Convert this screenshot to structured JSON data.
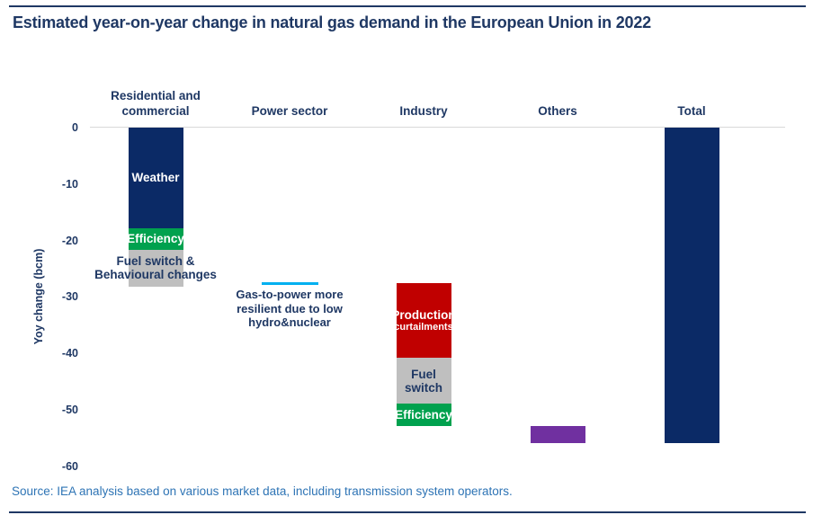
{
  "page": {
    "title": "Estimated year-on-year change in natural gas demand in the European Union in 2022",
    "source": "Source: IEA analysis based on various market data, including transmission system operators."
  },
  "colors": {
    "navy": "#0b2a66",
    "green": "#00a14e",
    "red": "#c00000",
    "gray": "#bfbfbf",
    "purple": "#7030a0",
    "cyan": "#00b0f0",
    "title_text": "#1f3864",
    "source_text": "#2e74b5",
    "gridline": "#d9d9d9"
  },
  "chart_data": {
    "type": "bar",
    "subtype": "stacked waterfall of negative year-on-year changes",
    "title": "Estimated year-on-year change in natural gas demand in the European Union in 2022",
    "xlabel": "",
    "ylabel": "Yoy change (bcm)",
    "ylim": [
      -60,
      0
    ],
    "yticks": [
      0,
      -10,
      -20,
      -30,
      -40,
      -50,
      -60
    ],
    "grid": "zero baseline only",
    "legend": "none (labels written inside bar segments)",
    "categories": [
      "Residential and commercial",
      "Power sector",
      "Industry",
      "Others",
      "Total"
    ],
    "columns": [
      {
        "category": "Residential and commercial",
        "segments": [
          {
            "label": "Weather",
            "from": 0,
            "to": -17.8,
            "delta": -17.8,
            "color": "navy",
            "text": "light"
          },
          {
            "label": "Efficiency",
            "from": -17.8,
            "to": -21.6,
            "delta": -3.8,
            "color": "green",
            "text": "light"
          },
          {
            "label": "Fuel switch & Behavioural changes",
            "from": -21.6,
            "to": -28.2,
            "delta": -6.6,
            "color": "gray",
            "text": "dark",
            "label_width": 160
          }
        ]
      },
      {
        "category": "Power sector",
        "marker_line_at": -27.6,
        "delta": 0.6,
        "color": "cyan",
        "annotation": "Gas-to-power more resilient due to low hydro&nuclear"
      },
      {
        "category": "Industry",
        "segments": [
          {
            "label": "Production",
            "sublabel": "curtailments",
            "from": -27.5,
            "to": -40.8,
            "delta": -13.3,
            "color": "red",
            "text": "light"
          },
          {
            "label": "Fuel switch",
            "from": -40.8,
            "to": -48.9,
            "delta": -8.1,
            "color": "gray",
            "text": "dark"
          },
          {
            "label": "Efficiency",
            "from": -48.9,
            "to": -52.8,
            "delta": -3.9,
            "color": "green",
            "text": "light"
          }
        ]
      },
      {
        "category": "Others",
        "segments": [
          {
            "label": "",
            "from": -52.9,
            "to": -55.9,
            "delta": -3.0,
            "color": "purple",
            "text": "light"
          }
        ]
      },
      {
        "category": "Total",
        "segments": [
          {
            "label": "",
            "from": 0,
            "to": -55.9,
            "delta": -55.9,
            "color": "navy",
            "text": "light"
          }
        ]
      }
    ]
  }
}
